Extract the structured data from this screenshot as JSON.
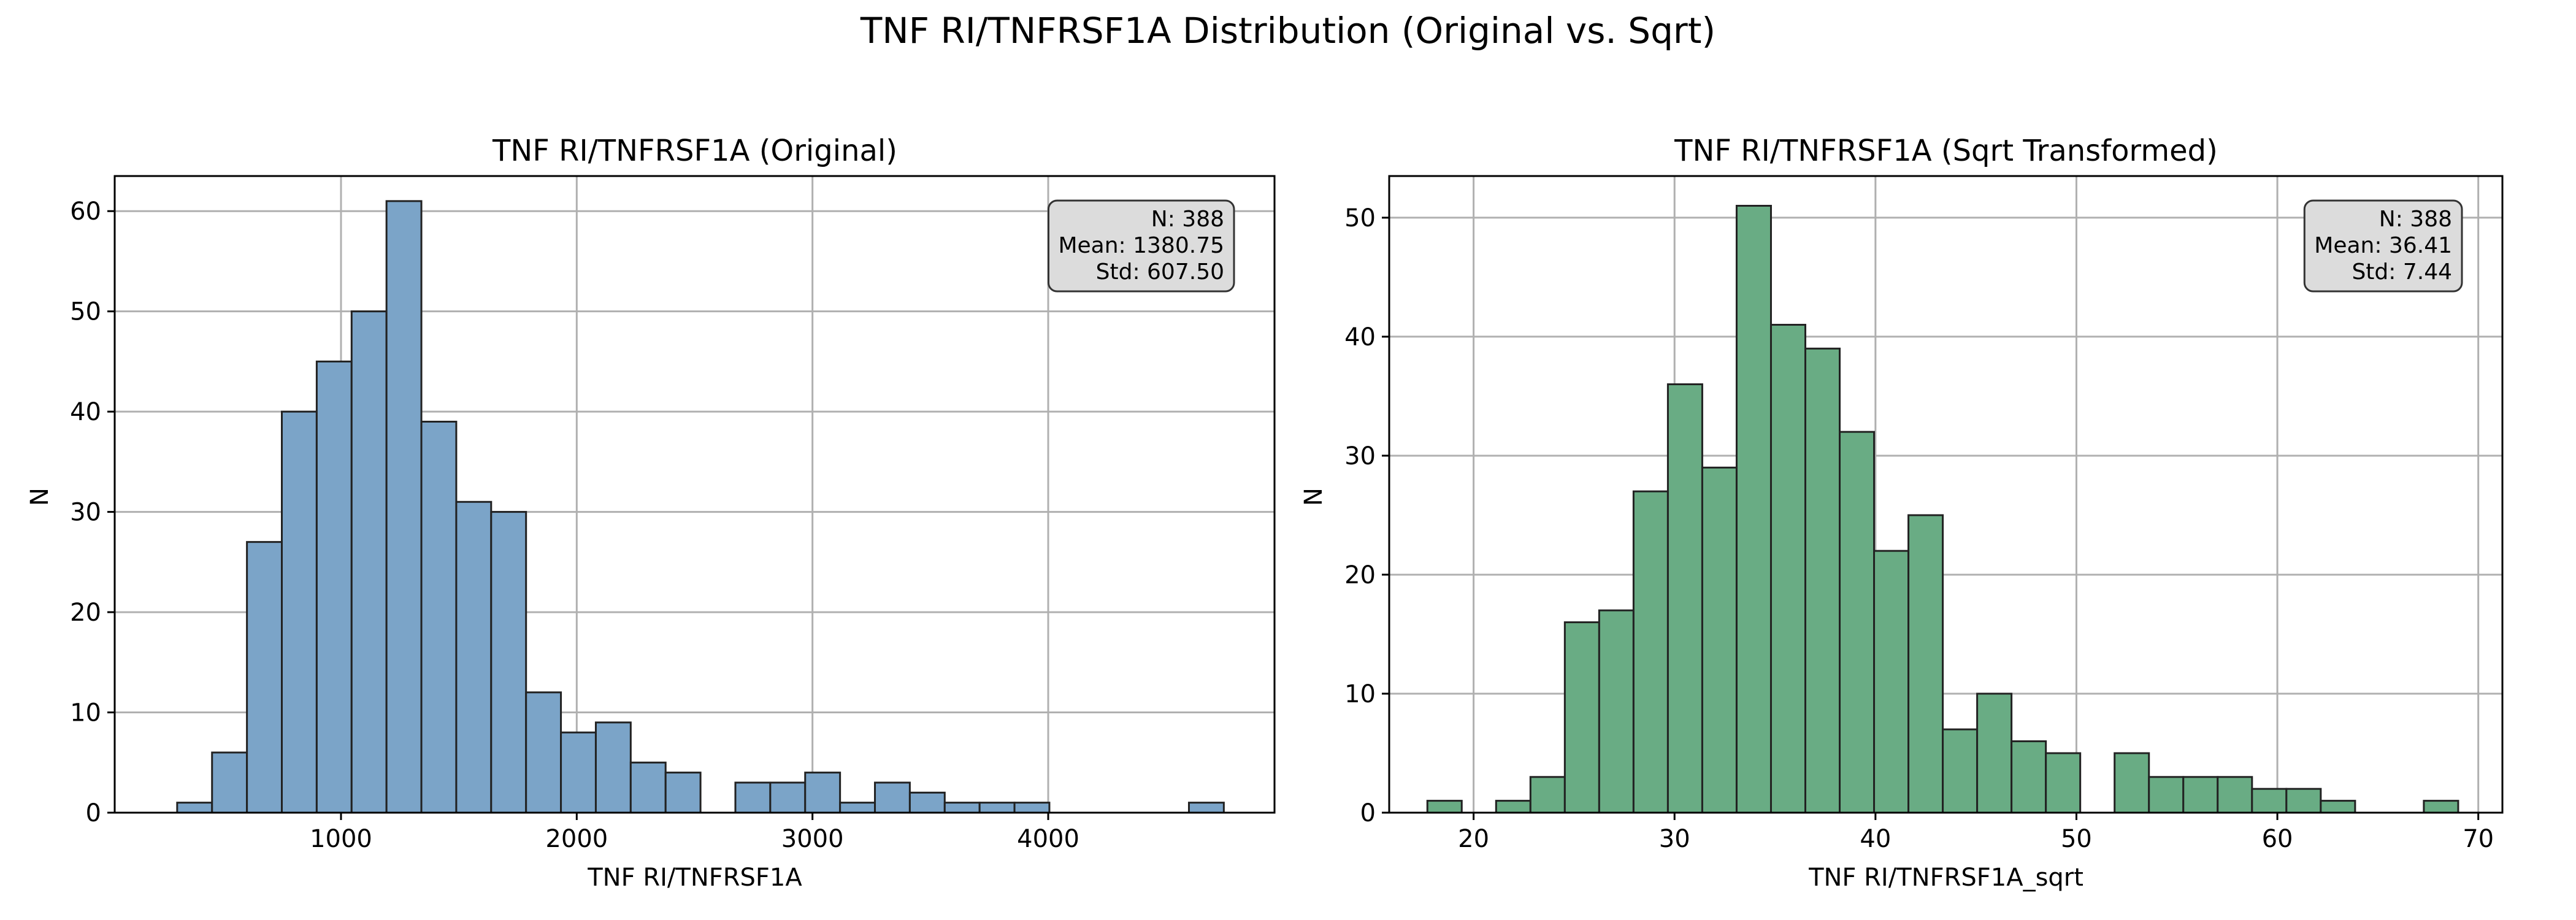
{
  "figure": {
    "suptitle": "TNF RI/TNFRSF1A Distribution (Original vs. Sqrt)"
  },
  "chart_data": [
    {
      "type": "bar",
      "title": "TNF RI/TNFRSF1A (Original)",
      "xlabel": "TNF RI/TNFRSF1A",
      "ylabel": "N",
      "xlim": [
        40,
        4960
      ],
      "ylim": [
        0,
        63.5
      ],
      "xticks": [
        1000,
        2000,
        3000,
        4000
      ],
      "yticks": [
        0,
        10,
        20,
        30,
        40,
        50,
        60
      ],
      "grid": true,
      "color": "#7BA4C8",
      "bin_edges": [
        305,
        453,
        601,
        749,
        897,
        1045,
        1193,
        1341,
        1489,
        1637,
        1785,
        1933,
        2081,
        2229,
        2377,
        2525,
        2673,
        2821,
        2969,
        3117,
        3265,
        3413,
        3561,
        3709,
        3857,
        4005,
        4153,
        4301,
        4449,
        4597,
        4745
      ],
      "counts": [
        1,
        6,
        27,
        40,
        45,
        50,
        61,
        39,
        31,
        30,
        12,
        8,
        9,
        5,
        4,
        0,
        3,
        3,
        4,
        1,
        3,
        2,
        1,
        1,
        1,
        0,
        0,
        0,
        0,
        1
      ],
      "stats": {
        "n": "N: 388",
        "mean": "Mean: 1380.75",
        "std": "Std: 607.50"
      },
      "stats_position": "top-right"
    },
    {
      "type": "bar",
      "title": "TNF RI/TNFRSF1A (Sqrt Transformed)",
      "xlabel": "TNF RI/TNFRSF1A_sqrt",
      "ylabel": "N",
      "xlim": [
        15.8,
        71.2
      ],
      "ylim": [
        0,
        53.5
      ],
      "xticks": [
        20,
        30,
        40,
        50,
        60,
        70
      ],
      "yticks": [
        0,
        10,
        20,
        30,
        40,
        50
      ],
      "grid": true,
      "color": "#69AC84",
      "bin_edges": [
        17.7,
        19.41,
        21.12,
        22.83,
        24.54,
        26.25,
        27.96,
        29.67,
        31.38,
        33.09,
        34.8,
        36.51,
        38.22,
        39.93,
        41.64,
        43.35,
        45.06,
        46.77,
        48.48,
        50.19,
        51.9,
        53.61,
        55.32,
        57.03,
        58.74,
        60.45,
        62.16,
        63.87,
        65.58,
        67.29,
        69.0
      ],
      "counts": [
        1,
        0,
        1,
        3,
        16,
        17,
        27,
        36,
        29,
        51,
        41,
        39,
        32,
        22,
        25,
        7,
        10,
        6,
        5,
        0,
        5,
        3,
        3,
        3,
        2,
        2,
        1,
        0,
        0,
        1
      ],
      "stats": {
        "n": "N: 388",
        "mean": "Mean: 36.41",
        "std": "Std: 7.44"
      },
      "stats_position": "top-right"
    }
  ]
}
